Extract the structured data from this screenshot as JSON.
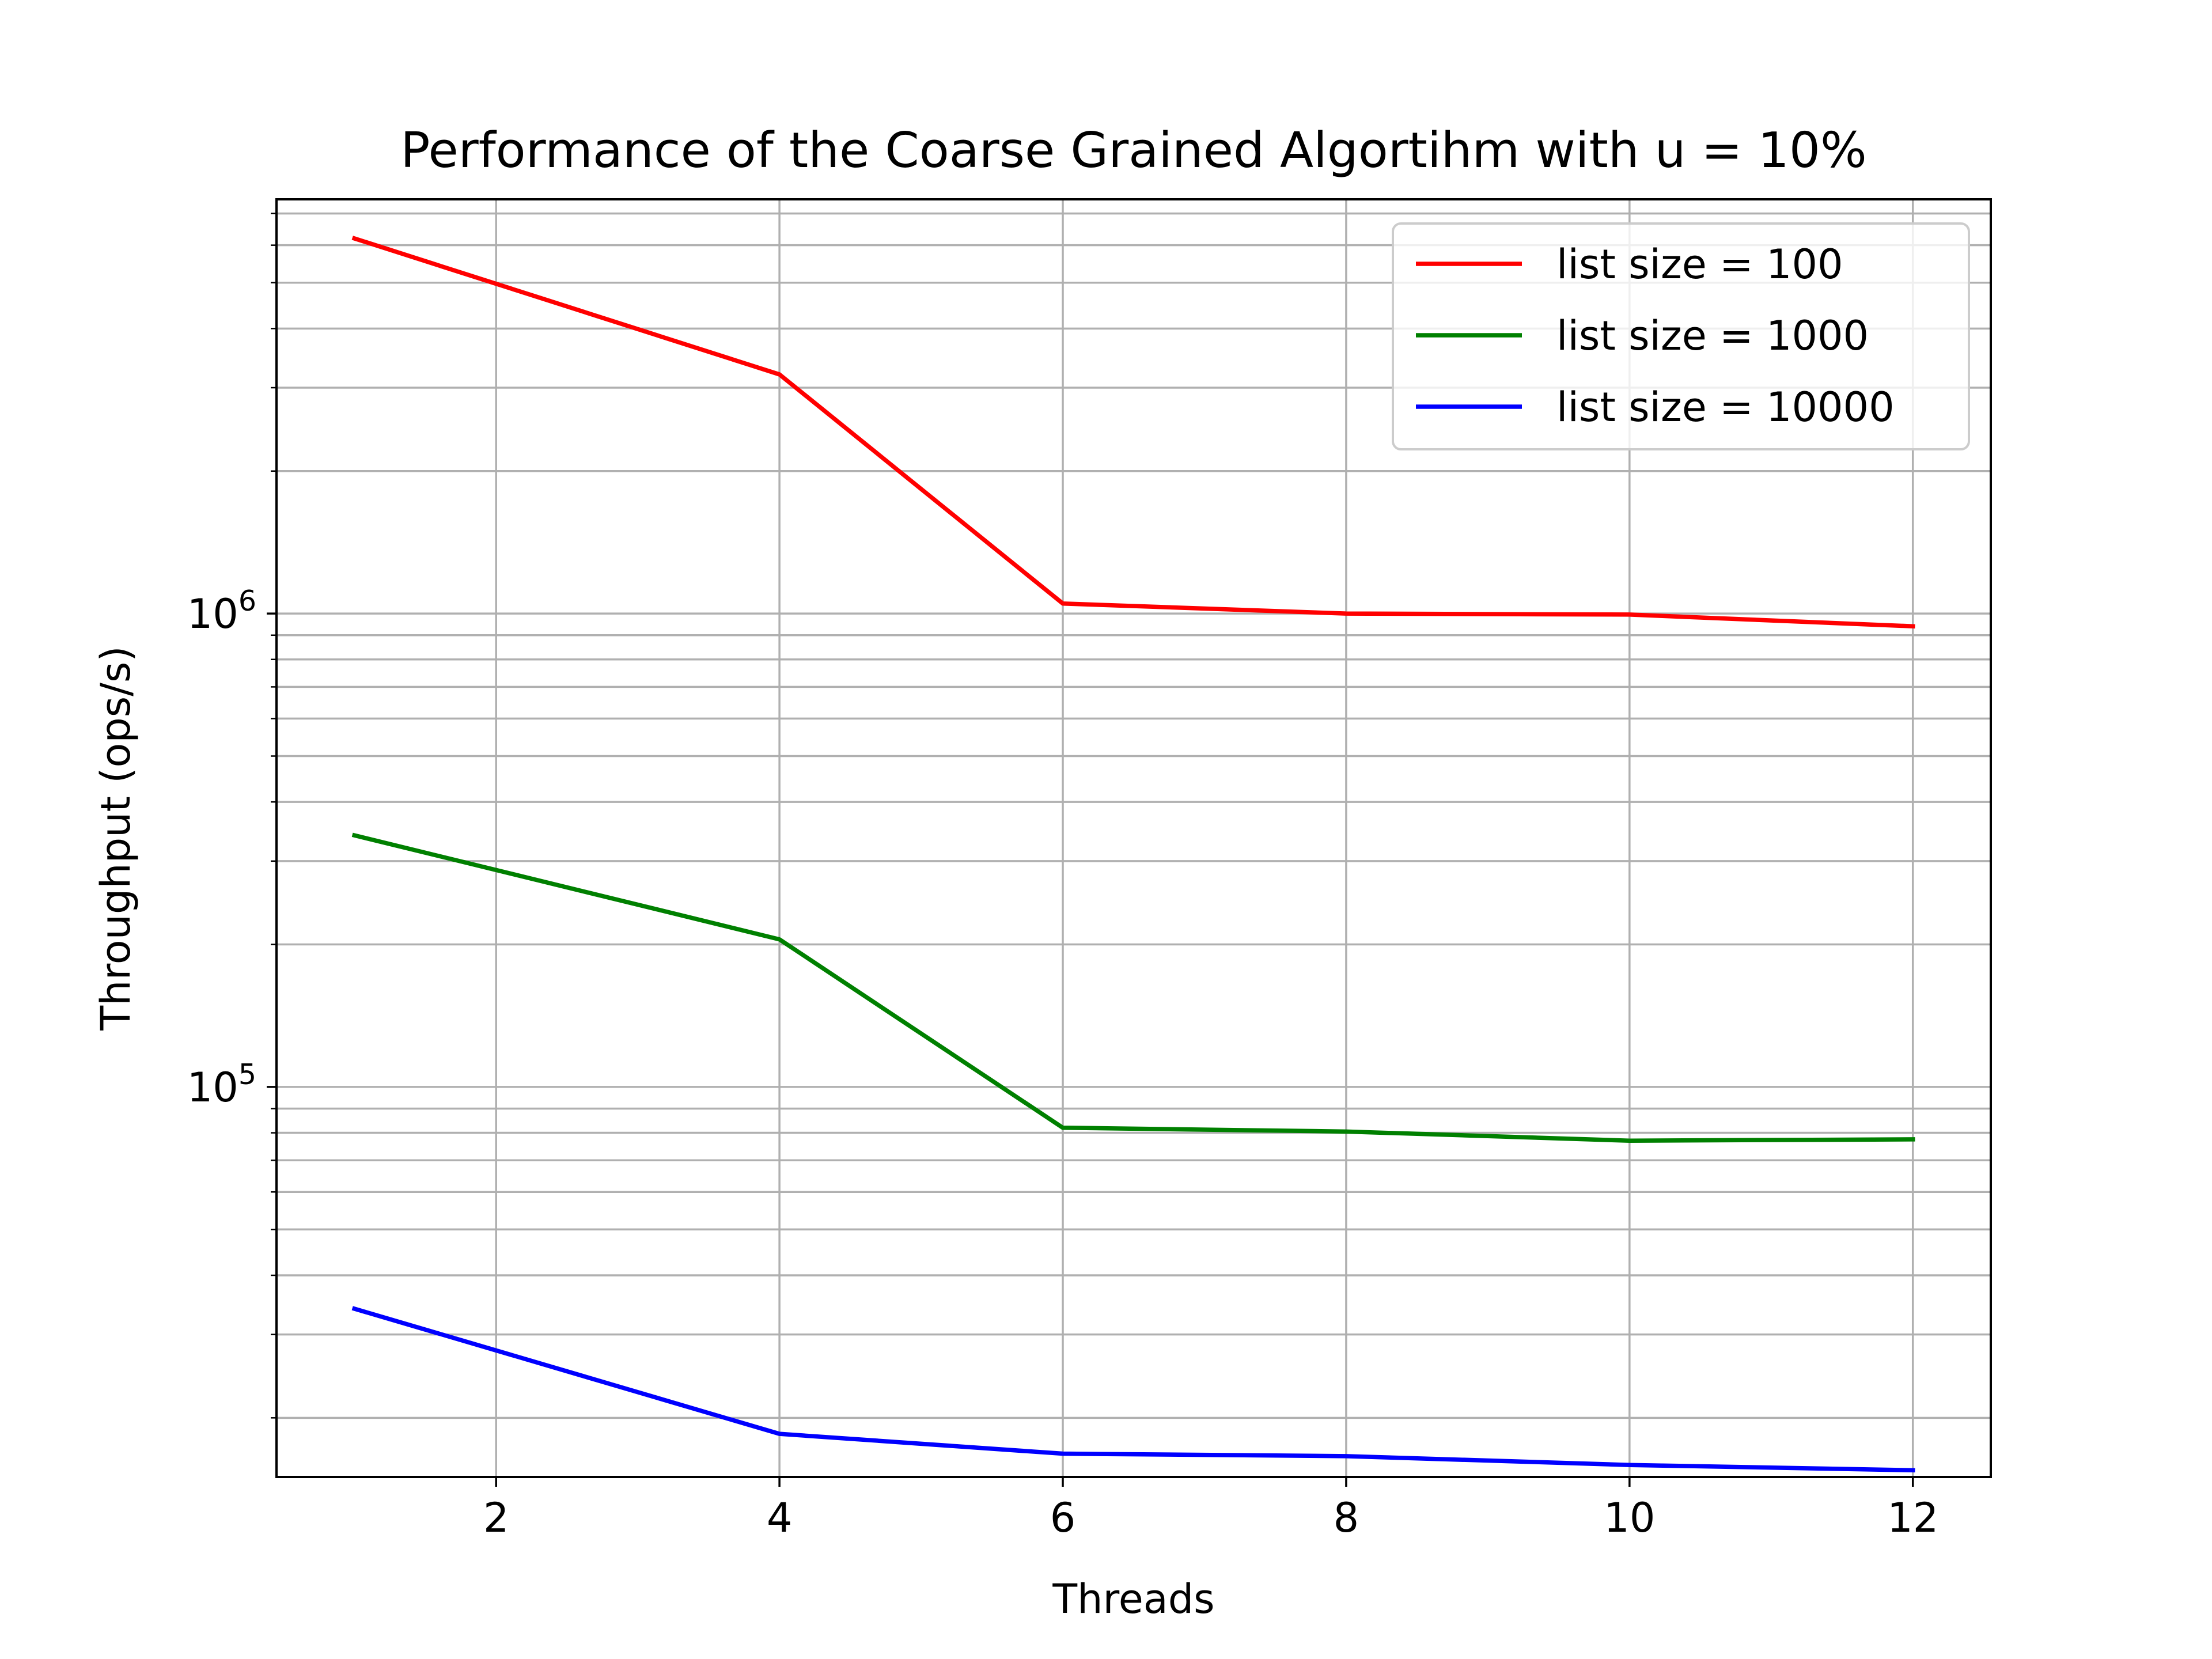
{
  "chart_data": {
    "type": "line",
    "title": "Performance of the Coarse Grained Algortihm with u = 10%",
    "xlabel": "Threads",
    "ylabel": "Throughput (ops/s)",
    "x": [
      1,
      4,
      6,
      8,
      10,
      12
    ],
    "xlim": [
      0.45,
      12.55
    ],
    "ylim": [
      15000,
      7500000
    ],
    "yscale": "log",
    "xticks": [
      2,
      4,
      6,
      8,
      10,
      12
    ],
    "xtick_labels": [
      "2",
      "4",
      "6",
      "8",
      "10",
      "12"
    ],
    "yticks": [
      {
        "base": "10",
        "exp": "5",
        "value": 100000
      },
      {
        "base": "10",
        "exp": "6",
        "value": 1000000
      }
    ],
    "grid": "on (major and minor)",
    "legend_position": "top-right",
    "series": [
      {
        "name": "list size = 100",
        "color": "#ff0000",
        "values": [
          6200000,
          3200000,
          1050000,
          1000000,
          995000,
          940000
        ]
      },
      {
        "name": "list size = 1000",
        "color": "#008000",
        "values": [
          340000,
          205000,
          82000,
          80500,
          77000,
          77500
        ]
      },
      {
        "name": "list size = 10000",
        "color": "#0000ff",
        "values": [
          34000,
          18500,
          16800,
          16600,
          15900,
          15500
        ]
      }
    ]
  }
}
